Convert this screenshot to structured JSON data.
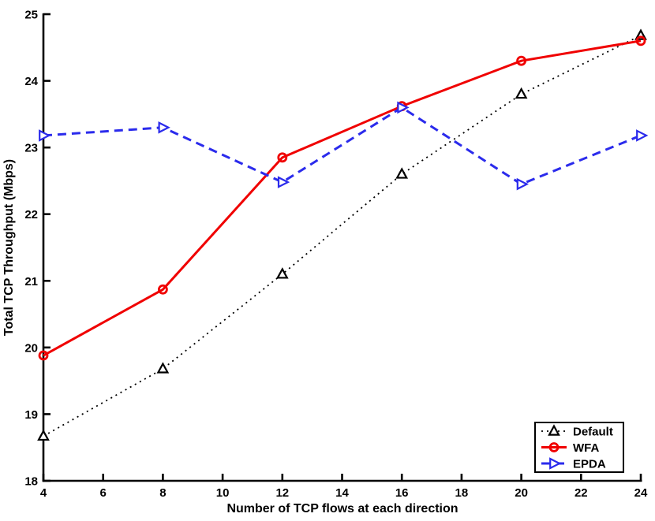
{
  "chart_data": {
    "type": "line",
    "title": "",
    "xlabel": "Number of TCP flows at each direction",
    "ylabel": "Total TCP Throughput (Mbps)",
    "x": [
      4,
      8,
      12,
      16,
      20,
      24
    ],
    "xlim": [
      4,
      24
    ],
    "ylim": [
      18,
      25
    ],
    "x_ticks": [
      4,
      6,
      8,
      10,
      12,
      14,
      16,
      18,
      20,
      22,
      24
    ],
    "y_ticks": [
      18,
      19,
      20,
      21,
      22,
      23,
      24,
      25
    ],
    "grid": false,
    "legend_position": "lower right",
    "axis_color": "#000000",
    "background_color": "#ffffff",
    "series": [
      {
        "name": "Default",
        "color": "#000000",
        "line_style": "dotted",
        "marker": "triangle-up",
        "values": [
          18.67,
          19.68,
          21.1,
          22.6,
          23.8,
          24.68
        ]
      },
      {
        "name": "WFA",
        "color": "#f00000",
        "line_style": "solid",
        "marker": "circle",
        "values": [
          19.88,
          20.87,
          22.85,
          23.62,
          24.3,
          24.6
        ]
      },
      {
        "name": "EPDA",
        "color": "#2b2bec",
        "line_style": "dashed",
        "marker": "triangle-right",
        "values": [
          23.18,
          23.3,
          22.48,
          23.6,
          22.45,
          23.18
        ]
      }
    ]
  }
}
